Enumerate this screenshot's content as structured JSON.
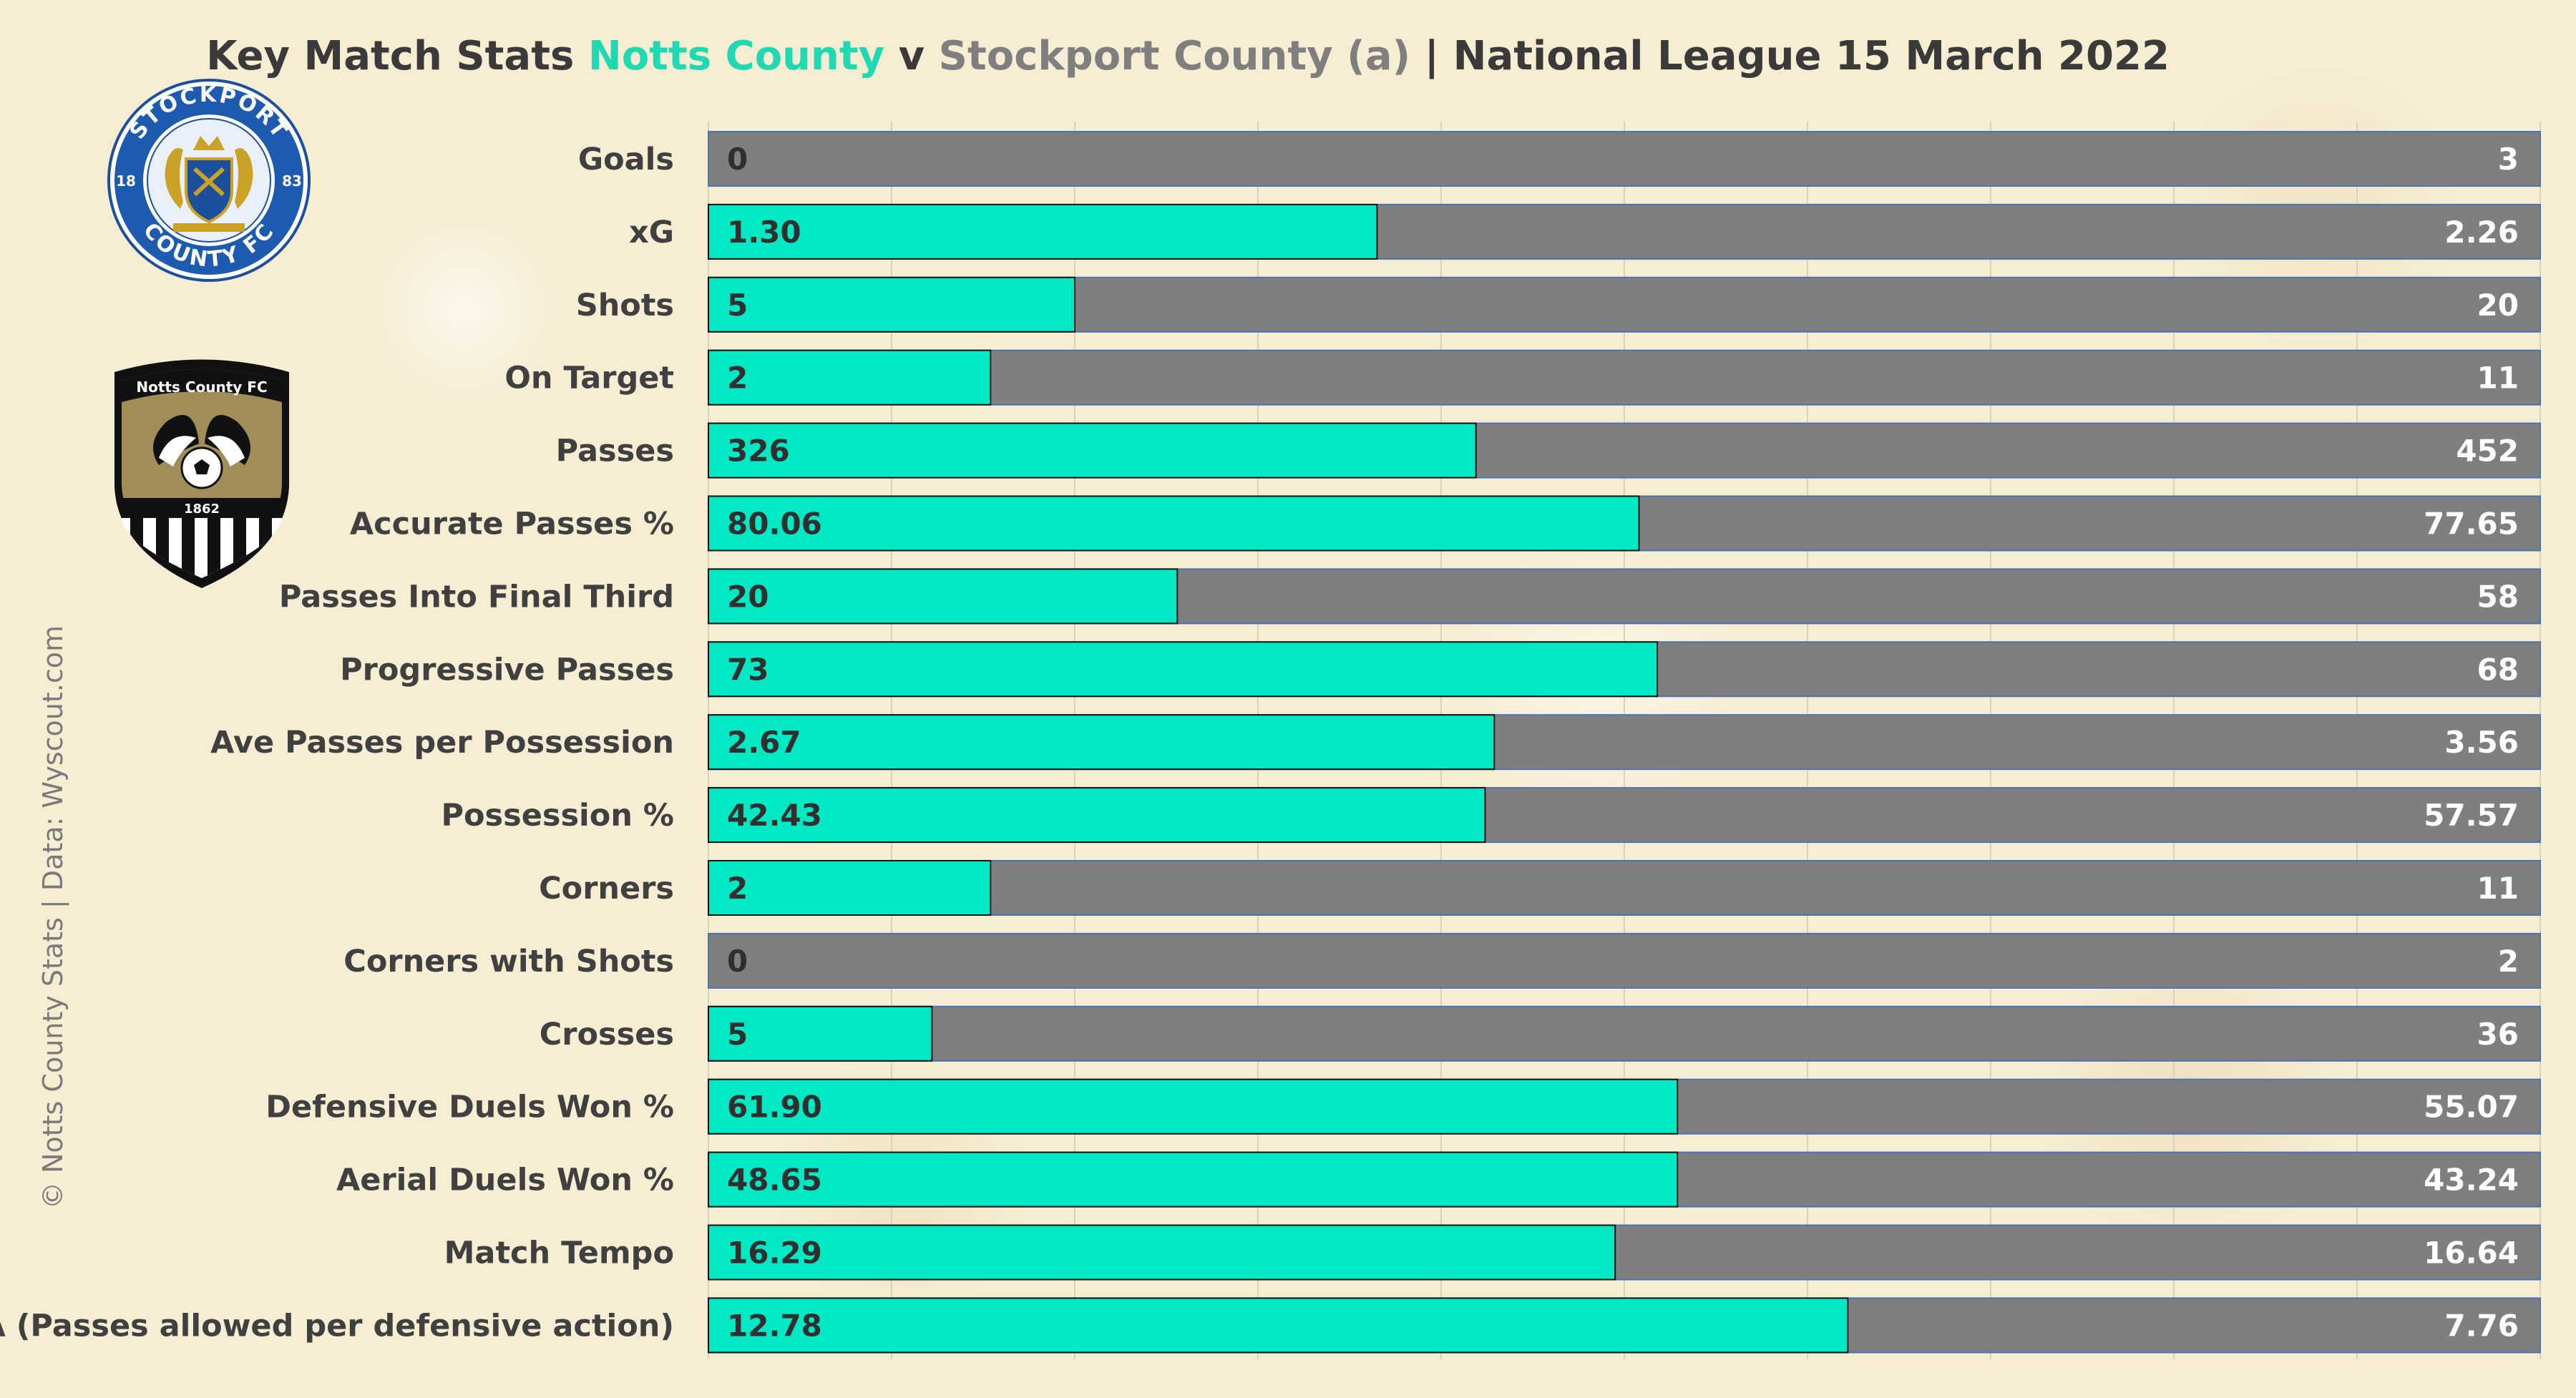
{
  "title": {
    "prefix": "Key Match Stats",
    "team_home": "Notts County",
    "sep": "v",
    "team_away": "Stockport County (a)",
    "suffix": "| National League 15 March 2022"
  },
  "credit": "© Notts County Stats | Data: Wyscout.com",
  "logos": {
    "stockport": {
      "top": "STOCKPORT",
      "bottom": "COUNTY FC",
      "left": "18",
      "right": "83"
    },
    "notts": {
      "banner": "Notts County FC",
      "year": "1862"
    }
  },
  "colors": {
    "notts": "#00e8c4",
    "stockport": "#7f7f7f",
    "title_text": "#3a3a3a"
  },
  "chart_data": {
    "type": "bar",
    "orientation": "horizontal-stacked-share",
    "series": [
      {
        "name": "Notts County",
        "color": "#00e8c4"
      },
      {
        "name": "Stockport County",
        "color": "#7f7f7f"
      }
    ],
    "categories": [
      {
        "label": "Goals",
        "notts": "0",
        "stockport": "3",
        "share": 0.0
      },
      {
        "label": "xG",
        "notts": "1.30",
        "stockport": "2.26",
        "share": 0.365
      },
      {
        "label": "Shots",
        "notts": "5",
        "stockport": "20",
        "share": 0.2
      },
      {
        "label": "On Target",
        "notts": "2",
        "stockport": "11",
        "share": 0.154
      },
      {
        "label": "Passes",
        "notts": "326",
        "stockport": "452",
        "share": 0.419
      },
      {
        "label": "Accurate Passes %",
        "notts": "80.06",
        "stockport": "77.65",
        "share": 0.508
      },
      {
        "label": "Passes Into Final Third",
        "notts": "20",
        "stockport": "58",
        "share": 0.256
      },
      {
        "label": "Progressive Passes",
        "notts": "73",
        "stockport": "68",
        "share": 0.518
      },
      {
        "label": "Ave Passes per Possession",
        "notts": "2.67",
        "stockport": "3.56",
        "share": 0.429
      },
      {
        "label": "Possession %",
        "notts": "42.43",
        "stockport": "57.57",
        "share": 0.424
      },
      {
        "label": "Corners",
        "notts": "2",
        "stockport": "11",
        "share": 0.154
      },
      {
        "label": "Corners with Shots",
        "notts": "0",
        "stockport": "2",
        "share": 0.0
      },
      {
        "label": "Crosses",
        "notts": "5",
        "stockport": "36",
        "share": 0.122
      },
      {
        "label": "Defensive Duels Won %",
        "notts": "61.90",
        "stockport": "55.07",
        "share": 0.529
      },
      {
        "label": "Aerial Duels Won %",
        "notts": "48.65",
        "stockport": "43.24",
        "share": 0.529
      },
      {
        "label": "Match Tempo",
        "notts": "16.29",
        "stockport": "16.64",
        "share": 0.495
      },
      {
        "label": "PPDA (Passes allowed per defensive action)",
        "notts": "12.78",
        "stockport": "7.76",
        "share": 0.622
      }
    ],
    "xlim": [
      0,
      1
    ],
    "grid": true
  }
}
